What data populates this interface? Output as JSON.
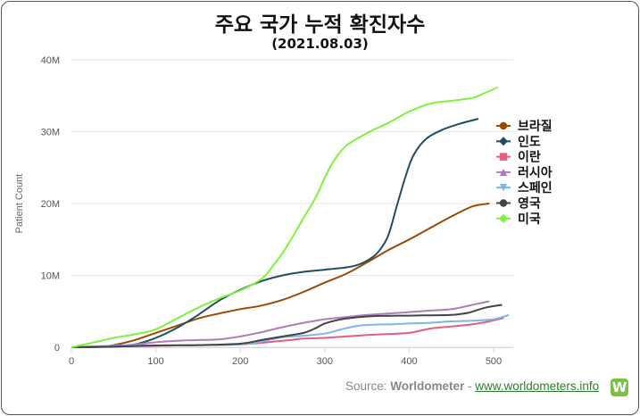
{
  "chart_data": {
    "type": "line",
    "title": "주요 국가 누적 확진자수",
    "subtitle": "(2021.08.03)",
    "xlabel": "",
    "ylabel": "Patient Count",
    "xlim": [
      0,
      520
    ],
    "ylim": [
      0,
      40000000
    ],
    "x_ticks": [
      0,
      100,
      200,
      300,
      400,
      500
    ],
    "y_ticks": [
      0,
      10000000,
      20000000,
      30000000,
      40000000
    ],
    "y_tick_labels": [
      "0",
      "10M",
      "20M",
      "30M",
      "40M"
    ],
    "grid": "horizontal",
    "legend_position": "right",
    "series": [
      {
        "name": "브라질",
        "color": "#9c4a00",
        "marker": "circle",
        "points": [
          [
            0,
            0
          ],
          [
            30,
            50000
          ],
          [
            50,
            300000
          ],
          [
            75,
            1000000
          ],
          [
            100,
            2000000
          ],
          [
            125,
            3000000
          ],
          [
            150,
            4000000
          ],
          [
            175,
            4700000
          ],
          [
            200,
            5300000
          ],
          [
            225,
            5800000
          ],
          [
            250,
            6600000
          ],
          [
            275,
            7700000
          ],
          [
            300,
            9000000
          ],
          [
            325,
            10200000
          ],
          [
            350,
            11800000
          ],
          [
            375,
            13500000
          ],
          [
            400,
            15000000
          ],
          [
            425,
            16600000
          ],
          [
            450,
            18200000
          ],
          [
            475,
            19600000
          ],
          [
            495,
            20000000
          ]
        ]
      },
      {
        "name": "인도",
        "color": "#1f4e64",
        "marker": "diamond",
        "points": [
          [
            0,
            0
          ],
          [
            50,
            100000
          ],
          [
            75,
            400000
          ],
          [
            100,
            1300000
          ],
          [
            125,
            2700000
          ],
          [
            150,
            4500000
          ],
          [
            175,
            6500000
          ],
          [
            200,
            8000000
          ],
          [
            225,
            9200000
          ],
          [
            250,
            10000000
          ],
          [
            275,
            10500000
          ],
          [
            300,
            10800000
          ],
          [
            325,
            11100000
          ],
          [
            340,
            11500000
          ],
          [
            355,
            12400000
          ],
          [
            365,
            13500000
          ],
          [
            375,
            15500000
          ],
          [
            385,
            19500000
          ],
          [
            395,
            23500000
          ],
          [
            405,
            26700000
          ],
          [
            420,
            29000000
          ],
          [
            440,
            30300000
          ],
          [
            460,
            31100000
          ],
          [
            482,
            31800000
          ]
        ]
      },
      {
        "name": "이란",
        "color": "#e85c7e",
        "marker": "square",
        "points": [
          [
            0,
            0
          ],
          [
            50,
            100000
          ],
          [
            100,
            200000
          ],
          [
            150,
            300000
          ],
          [
            200,
            400000
          ],
          [
            250,
            900000
          ],
          [
            275,
            1200000
          ],
          [
            300,
            1300000
          ],
          [
            325,
            1500000
          ],
          [
            350,
            1700000
          ],
          [
            375,
            1850000
          ],
          [
            400,
            2000000
          ],
          [
            425,
            2600000
          ],
          [
            450,
            2900000
          ],
          [
            475,
            3200000
          ],
          [
            495,
            3600000
          ],
          [
            512,
            4100000
          ]
        ]
      },
      {
        "name": "러시아",
        "color": "#b07cb8",
        "marker": "triangle",
        "points": [
          [
            0,
            0
          ],
          [
            50,
            200000
          ],
          [
            75,
            400000
          ],
          [
            100,
            700000
          ],
          [
            125,
            900000
          ],
          [
            150,
            1000000
          ],
          [
            175,
            1100000
          ],
          [
            200,
            1500000
          ],
          [
            225,
            2100000
          ],
          [
            250,
            2800000
          ],
          [
            275,
            3400000
          ],
          [
            300,
            3900000
          ],
          [
            325,
            4200000
          ],
          [
            350,
            4500000
          ],
          [
            375,
            4700000
          ],
          [
            400,
            4900000
          ],
          [
            425,
            5100000
          ],
          [
            450,
            5300000
          ],
          [
            475,
            5900000
          ],
          [
            495,
            6400000
          ]
        ]
      },
      {
        "name": "스페인",
        "color": "#7cb5ec",
        "marker": "triangle-down",
        "points": [
          [
            0,
            0
          ],
          [
            50,
            200000
          ],
          [
            100,
            250000
          ],
          [
            150,
            300000
          ],
          [
            200,
            400000
          ],
          [
            225,
            800000
          ],
          [
            250,
            1400000
          ],
          [
            275,
            1600000
          ],
          [
            300,
            1900000
          ],
          [
            320,
            2500000
          ],
          [
            340,
            3000000
          ],
          [
            360,
            3150000
          ],
          [
            380,
            3200000
          ],
          [
            400,
            3300000
          ],
          [
            425,
            3400000
          ],
          [
            450,
            3600000
          ],
          [
            475,
            3700000
          ],
          [
            500,
            3900000
          ],
          [
            518,
            4500000
          ]
        ]
      },
      {
        "name": "영국",
        "color": "#434348",
        "marker": "circle",
        "points": [
          [
            0,
            0
          ],
          [
            50,
            100000
          ],
          [
            100,
            250000
          ],
          [
            150,
            300000
          ],
          [
            200,
            500000
          ],
          [
            225,
            1000000
          ],
          [
            250,
            1500000
          ],
          [
            275,
            2000000
          ],
          [
            290,
            2700000
          ],
          [
            300,
            3300000
          ],
          [
            320,
            3900000
          ],
          [
            340,
            4200000
          ],
          [
            360,
            4350000
          ],
          [
            400,
            4400000
          ],
          [
            425,
            4450000
          ],
          [
            450,
            4500000
          ],
          [
            470,
            4800000
          ],
          [
            490,
            5500000
          ],
          [
            510,
            5900000
          ]
        ]
      },
      {
        "name": "미국",
        "color": "#7ff23c",
        "marker": "diamond",
        "points": [
          [
            0,
            0
          ],
          [
            20,
            500000
          ],
          [
            50,
            1300000
          ],
          [
            75,
            1800000
          ],
          [
            100,
            2500000
          ],
          [
            125,
            4000000
          ],
          [
            150,
            5500000
          ],
          [
            175,
            6800000
          ],
          [
            200,
            7900000
          ],
          [
            225,
            9500000
          ],
          [
            240,
            11500000
          ],
          [
            255,
            14000000
          ],
          [
            275,
            18000000
          ],
          [
            290,
            21000000
          ],
          [
            300,
            23600000
          ],
          [
            310,
            25800000
          ],
          [
            325,
            28000000
          ],
          [
            350,
            29800000
          ],
          [
            375,
            31200000
          ],
          [
            400,
            32800000
          ],
          [
            425,
            33900000
          ],
          [
            450,
            34300000
          ],
          [
            475,
            34700000
          ],
          [
            490,
            35400000
          ],
          [
            505,
            36200000
          ]
        ]
      }
    ]
  },
  "source": {
    "prefix": "Source: ",
    "brand": "Worldometer",
    "sep": " - ",
    "link": "www.worldometers.info",
    "logo_letter": "W"
  }
}
